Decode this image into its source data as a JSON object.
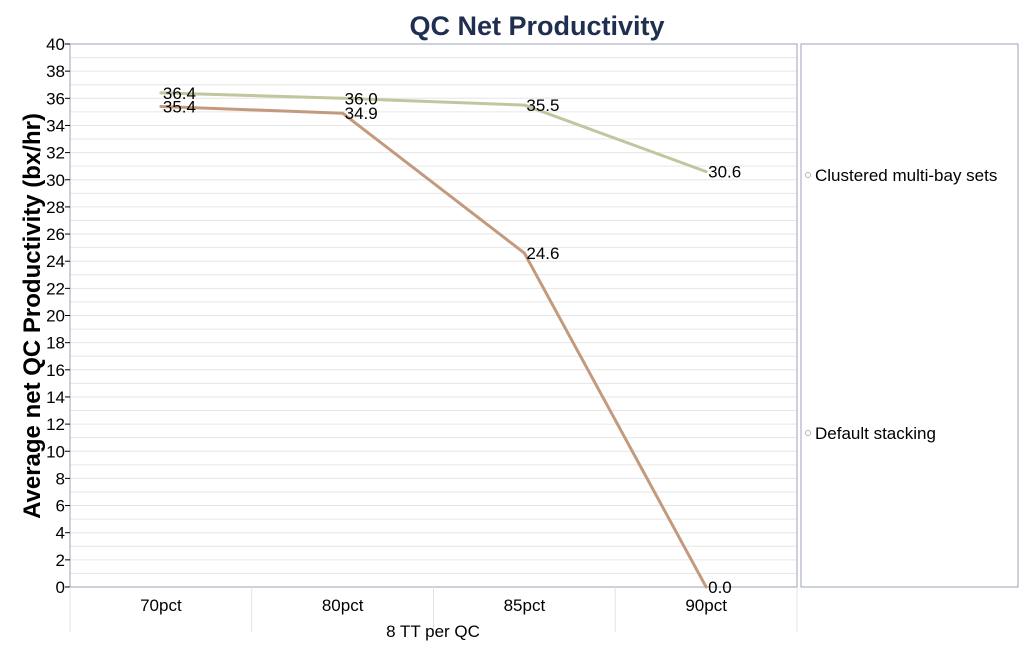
{
  "chart_data": {
    "type": "line",
    "title": "QC Net Productivity",
    "ylabel": "Average net QC Productivity (bx/hr)",
    "xlabel": "8 TT per QC",
    "categories": [
      "70pct",
      "80pct",
      "85pct",
      "90pct"
    ],
    "ylim": [
      0,
      40
    ],
    "ytick_step": 2,
    "yticks": [
      "0",
      "2",
      "4",
      "6",
      "8",
      "10",
      "12",
      "14",
      "16",
      "18",
      "20",
      "22",
      "24",
      "26",
      "28",
      "30",
      "32",
      "34",
      "36",
      "38",
      "40"
    ],
    "series": [
      {
        "name": "Clustered multi-bay sets",
        "values": [
          36.4,
          36.0,
          35.5,
          30.6
        ],
        "labels": [
          "36.4",
          "36.0",
          "35.5",
          "30.6"
        ],
        "color": "#bfc79e"
      },
      {
        "name": "Default stacking",
        "values": [
          35.4,
          34.9,
          24.6,
          0.0
        ],
        "labels": [
          "35.4",
          "34.9",
          "24.6",
          "0.0"
        ],
        "color": "#c49a7f"
      }
    ],
    "grid": true,
    "legend_position": "right"
  },
  "colors": {
    "title": "#1f2f4f",
    "axis": "#9aa3b8",
    "grid": "#e3e3e3"
  }
}
